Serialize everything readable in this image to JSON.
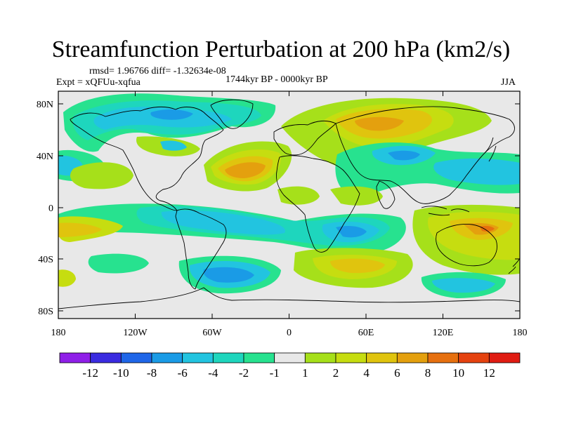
{
  "title": "Streamfunction Perturbation at 200 hPa (km2/s)",
  "stats": "rmsd= 1.96766 diff= -1.32634e-08",
  "experiment": "Expt = xQFUu-xqfua",
  "period": "1744kyr BP - 0000kyr BP",
  "season": "JJA",
  "axes": {
    "lat_labels": [
      "80N",
      "40N",
      "0",
      "40S",
      "80S"
    ],
    "lon_labels": [
      "180",
      "120W",
      "60W",
      "0",
      "60E",
      "120E",
      "180"
    ]
  },
  "colorbar": {
    "labels": [
      "-12",
      "-10",
      "-8",
      "-6",
      "-4",
      "-2",
      "-1",
      "1",
      "2",
      "4",
      "6",
      "8",
      "10",
      "12"
    ],
    "colors": [
      "#8f1fe8",
      "#3a2be0",
      "#1f66e8",
      "#1a9be6",
      "#22c4e0",
      "#1ed6bd",
      "#27e28f",
      "#e8e8e8",
      "#a6e01a",
      "#c6dd10",
      "#e0c40e",
      "#e4a00e",
      "#e6700f",
      "#e5420f",
      "#e01c12"
    ]
  }
}
